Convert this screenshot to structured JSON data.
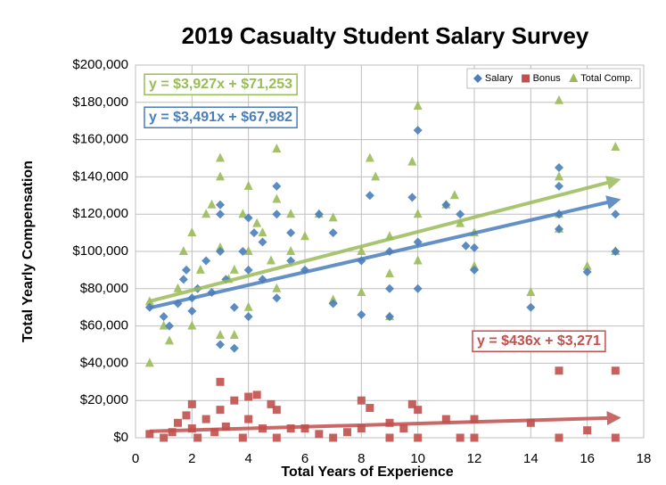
{
  "chart_data": {
    "type": "scatter",
    "title": "2019 Casualty Student Salary Survey",
    "x_label": "Total Years of Experience",
    "y_label": "Total Yearly Compensation",
    "xlim": [
      0,
      18
    ],
    "xticks": [
      0,
      2,
      4,
      6,
      8,
      10,
      12,
      14,
      16,
      18
    ],
    "ylim": [
      0,
      200000
    ],
    "yticks": [
      {
        "value": 0,
        "label": "$0"
      },
      {
        "value": 20000,
        "label": "$20,000"
      },
      {
        "value": 40000,
        "label": "$40,000"
      },
      {
        "value": 60000,
        "label": "$60,000"
      },
      {
        "value": 80000,
        "label": "$80,000"
      },
      {
        "value": 100000,
        "label": "$100,000"
      },
      {
        "value": 120000,
        "label": "$120,000"
      },
      {
        "value": 140000,
        "label": "$140,000"
      },
      {
        "value": 160000,
        "label": "$160,000"
      },
      {
        "value": 180000,
        "label": "$180,000"
      },
      {
        "value": 200000,
        "label": "$200,000"
      }
    ],
    "grid": true,
    "legend": "top-right",
    "series": [
      {
        "name": "Salary",
        "color": "#4a7ebb",
        "marker": "diamond",
        "x": [
          0.5,
          1,
          1.2,
          1.5,
          1.7,
          1.8,
          2,
          2,
          2.2,
          2.5,
          2.7,
          3,
          3,
          3,
          3,
          3.2,
          3.5,
          3.5,
          3.8,
          4,
          4,
          4,
          4.2,
          4.5,
          4.5,
          5,
          5,
          5,
          5.5,
          5.5,
          6,
          6.5,
          7,
          7,
          8,
          8,
          8.3,
          9,
          9,
          9,
          9.8,
          10,
          10,
          10,
          11,
          11.5,
          11.7,
          12,
          12,
          14,
          15,
          15,
          15,
          15,
          16,
          17,
          17
        ],
        "values": [
          70000,
          65000,
          60000,
          72000,
          85000,
          90000,
          75000,
          68000,
          80000,
          95000,
          78000,
          125000,
          120000,
          100000,
          50000,
          85000,
          70000,
          48000,
          100000,
          118000,
          90000,
          65000,
          110000,
          105000,
          85000,
          135000,
          120000,
          75000,
          110000,
          95000,
          90000,
          120000,
          110000,
          72000,
          95000,
          66000,
          130000,
          100000,
          80000,
          65000,
          129000,
          165000,
          105000,
          80000,
          125000,
          120000,
          103000,
          102000,
          90000,
          70000,
          145000,
          135000,
          120000,
          112000,
          89000,
          120000,
          100000
        ]
      },
      {
        "name": "Bonus",
        "color": "#c0504d",
        "marker": "square",
        "x": [
          0.5,
          1,
          1.3,
          1.5,
          1.8,
          2,
          2,
          2.2,
          2.5,
          2.8,
          3,
          3,
          3.2,
          3.5,
          3.8,
          4,
          4,
          4.3,
          4.5,
          4.8,
          5,
          5,
          5.5,
          6,
          6.5,
          7,
          7.5,
          8,
          8,
          8.3,
          9,
          9,
          9.5,
          9.8,
          10,
          10,
          11,
          11.5,
          12,
          12,
          14,
          15,
          15,
          16,
          17,
          17
        ],
        "values": [
          2000,
          0,
          3000,
          8000,
          12000,
          18000,
          5000,
          0,
          10000,
          3000,
          30000,
          15000,
          6000,
          20000,
          0,
          22000,
          10000,
          23000,
          5000,
          18000,
          15000,
          0,
          5000,
          5000,
          2000,
          0,
          3000,
          20000,
          5000,
          16000,
          8000,
          0,
          5000,
          18000,
          15000,
          0,
          10000,
          0,
          10000,
          0,
          8000,
          36000,
          0,
          4000,
          36000,
          0
        ]
      },
      {
        "name": "Total Comp.",
        "color": "#9bbb59",
        "marker": "triangle",
        "x": [
          0.5,
          0.5,
          1,
          1.2,
          1.5,
          1.7,
          2,
          2,
          2.3,
          2.5,
          2.7,
          3,
          3,
          3,
          3,
          3.3,
          3.5,
          3.5,
          3.8,
          4,
          4,
          4,
          4.3,
          4.5,
          4.8,
          5,
          5,
          5,
          5.5,
          5.5,
          6,
          6.5,
          7,
          7,
          8,
          8,
          8.3,
          8.5,
          9,
          9,
          9,
          9.8,
          10,
          10,
          10,
          11,
          11.3,
          11.5,
          12,
          12,
          14,
          15,
          15,
          15,
          15,
          16,
          17,
          17
        ],
        "values": [
          73000,
          40000,
          60000,
          52000,
          80000,
          100000,
          110000,
          60000,
          90000,
          120000,
          125000,
          150000,
          140000,
          102000,
          55000,
          85000,
          90000,
          55000,
          120000,
          135000,
          100000,
          70000,
          115000,
          110000,
          95000,
          155000,
          128000,
          80000,
          120000,
          100000,
          108000,
          120000,
          118000,
          74000,
          100000,
          78000,
          150000,
          140000,
          108000,
          88000,
          65000,
          148000,
          178000,
          120000,
          95000,
          125000,
          130000,
          115000,
          110000,
          92000,
          78000,
          181000,
          140000,
          120000,
          112000,
          92000,
          156000,
          100000
        ]
      }
    ],
    "trendlines": [
      {
        "label": "y = $3,927x + $71,253",
        "slope": 3927,
        "intercept": 71253,
        "xrange": [
          0.5,
          17
        ],
        "color": "#9bbb59"
      },
      {
        "label": "y = $3,491x + $67,982",
        "slope": 3491,
        "intercept": 67982,
        "xrange": [
          0.5,
          17
        ],
        "color": "#4a7ebb"
      },
      {
        "label": "y = $436x + $3,271",
        "slope": 436,
        "intercept": 3271,
        "xrange": [
          0.5,
          17
        ],
        "color": "#c0504d"
      }
    ]
  }
}
